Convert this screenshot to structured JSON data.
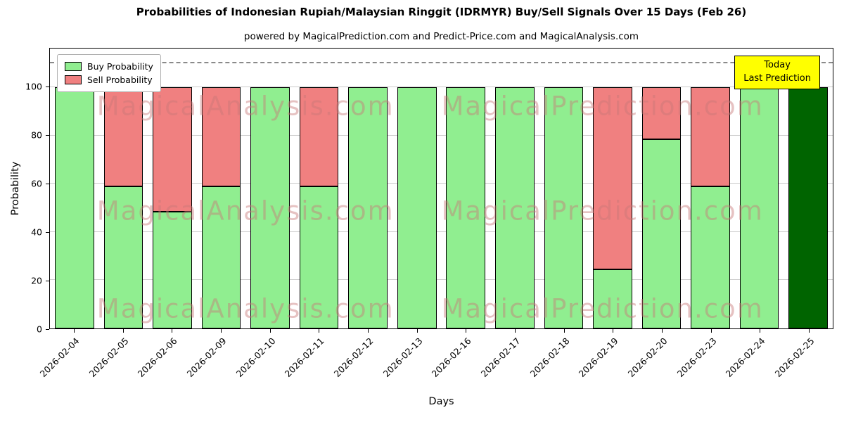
{
  "title": "Probabilities of Indonesian Rupiah/Malaysian Ringgit (IDRMYR) Buy/Sell Signals Over 15 Days (Feb 26)",
  "subtitle": "powered by MagicalPrediction.com and Predict-Price.com and MagicalAnalysis.com",
  "annotation": {
    "line1": "Today",
    "line2": "Last Prediction",
    "bg_color": "#ffff00"
  },
  "legend": [
    {
      "label": "Buy Probability",
      "color": "#90ee90"
    },
    {
      "label": "Sell Probability",
      "color": "#f08080"
    }
  ],
  "watermarks": [
    "MagicalAnalysis.com",
    "MagicalPrediction.com"
  ],
  "chart_data": {
    "type": "bar",
    "stacked": true,
    "title": "Probabilities of Indonesian Rupiah/Malaysian Ringgit (IDRMYR) Buy/Sell Signals Over 15 Days (Feb 26)",
    "xlabel": "Days",
    "ylabel": "Probability",
    "ylim": [
      0,
      116
    ],
    "yticks": [
      0,
      20,
      40,
      60,
      80,
      100
    ],
    "grid": true,
    "legend_position": "upper left",
    "dashed_line_y": 110,
    "categories": [
      "2026-02-04",
      "2026-02-05",
      "2026-02-06",
      "2026-02-09",
      "2026-02-10",
      "2026-02-11",
      "2026-02-12",
      "2026-02-13",
      "2026-02-16",
      "2026-02-17",
      "2026-02-18",
      "2026-02-19",
      "2026-02-20",
      "2026-02-23",
      "2026-02-24",
      "2026-02-25"
    ],
    "series": [
      {
        "name": "Buy Probability",
        "color": "#90ee90",
        "values": [
          100,
          59,
          48.5,
          59,
          100,
          59,
          100,
          100,
          100,
          100,
          100,
          24.5,
          78.5,
          59,
          100,
          100
        ]
      },
      {
        "name": "Sell Probability",
        "color": "#f08080",
        "values": [
          0,
          41,
          51.5,
          41,
          0,
          41,
          0,
          0,
          0,
          0,
          0,
          75.5,
          21.5,
          41,
          0,
          0
        ]
      }
    ],
    "last_bar_color": "#006400"
  }
}
